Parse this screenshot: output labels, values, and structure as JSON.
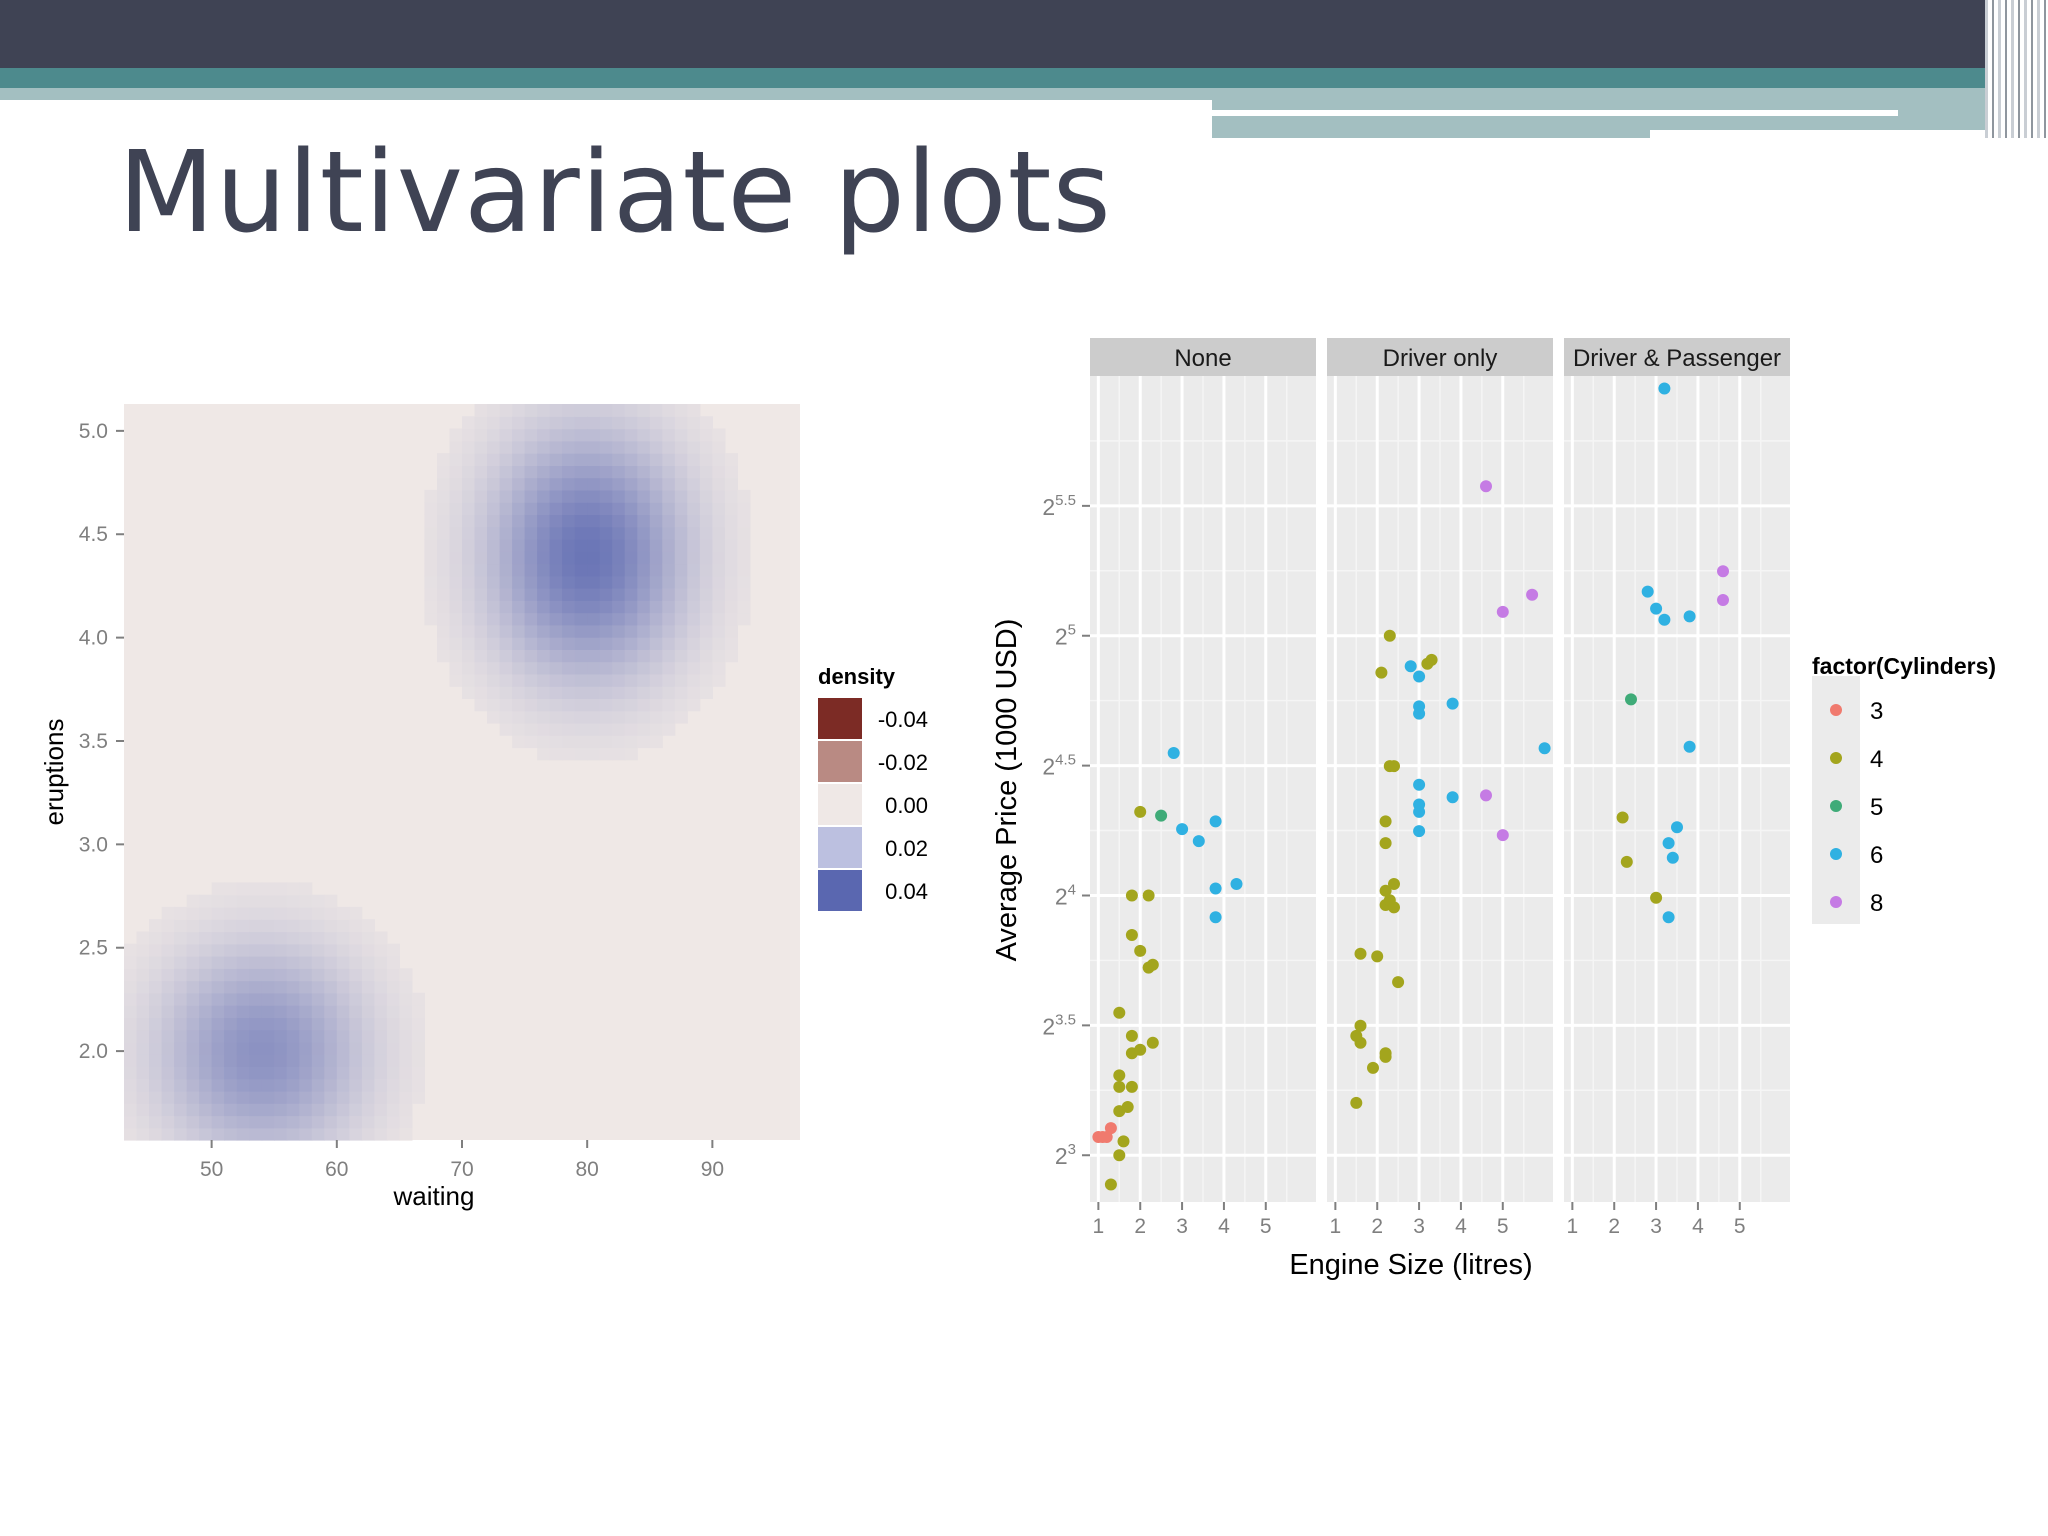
{
  "slide": {
    "title": "Multivariate plots"
  },
  "chart_data": [
    {
      "type": "heatmap",
      "xlabel": "waiting",
      "ylabel": "eruptions",
      "xlim": [
        43,
        97
      ],
      "ylim": [
        1.57,
        5.13
      ],
      "xticks": [
        50,
        60,
        70,
        80,
        90
      ],
      "yticks": [
        "2.0",
        "2.5",
        "3.0",
        "3.5",
        "4.0",
        "4.5",
        "5.0"
      ],
      "legend": {
        "title": "density",
        "placement": "right",
        "entries": [
          {
            "label": "-0.04",
            "color": "#7c2b25"
          },
          {
            "label": "-0.02",
            "color": "#b98a83"
          },
          {
            "label": "0.00",
            "color": "#efe8e6"
          },
          {
            "label": "0.02",
            "color": "#bcc0e0"
          },
          {
            "label": "0.04",
            "color": "#5a67b0"
          }
        ]
      },
      "density_peaks": [
        {
          "waiting": 80,
          "eruptions": 4.4,
          "density": 0.04
        },
        {
          "waiting": 54,
          "eruptions": 2.0,
          "density": 0.03
        }
      ]
    },
    {
      "type": "scatter",
      "xlabel": "Engine Size (litres)",
      "ylabel": "Average Price (1000 USD)",
      "y_scale": "log2",
      "yticks": [
        "2^3",
        "2^3.5",
        "2^4",
        "2^4.5",
        "2^5",
        "2^5.5"
      ],
      "xticks": [
        "1",
        "2",
        "3",
        "4",
        "5"
      ],
      "grid": true,
      "facets": [
        "None",
        "Driver only",
        "Driver & Passenger"
      ],
      "legend": {
        "title": "factor(Cylinders)",
        "placement": "right",
        "entries": [
          {
            "label": "3",
            "color": "#f07a6e"
          },
          {
            "label": "4",
            "color": "#a3a51d"
          },
          {
            "label": "5",
            "color": "#3fab78"
          },
          {
            "label": "6",
            "color": "#2fb1e2"
          },
          {
            "label": "8",
            "color": "#c57be4"
          }
        ]
      },
      "series": [
        {
          "facet": "None",
          "points": [
            {
              "x": 1.0,
              "y": 8.4,
              "cyl": "3"
            },
            {
              "x": 1.1,
              "y": 8.4,
              "cyl": "3"
            },
            {
              "x": 1.2,
              "y": 8.4,
              "cyl": "3"
            },
            {
              "x": 1.3,
              "y": 8.6,
              "cyl": "3"
            },
            {
              "x": 1.3,
              "y": 7.4,
              "cyl": "4"
            },
            {
              "x": 1.5,
              "y": 8.0,
              "cyl": "4"
            },
            {
              "x": 1.6,
              "y": 8.3,
              "cyl": "4"
            },
            {
              "x": 1.5,
              "y": 9.0,
              "cyl": "4"
            },
            {
              "x": 1.7,
              "y": 9.1,
              "cyl": "4"
            },
            {
              "x": 1.5,
              "y": 9.6,
              "cyl": "4"
            },
            {
              "x": 1.8,
              "y": 9.6,
              "cyl": "4"
            },
            {
              "x": 1.5,
              "y": 9.9,
              "cyl": "4"
            },
            {
              "x": 1.8,
              "y": 10.5,
              "cyl": "4"
            },
            {
              "x": 2.0,
              "y": 10.6,
              "cyl": "4"
            },
            {
              "x": 2.3,
              "y": 10.8,
              "cyl": "4"
            },
            {
              "x": 1.8,
              "y": 11.0,
              "cyl": "4"
            },
            {
              "x": 1.5,
              "y": 11.7,
              "cyl": "4"
            },
            {
              "x": 2.2,
              "y": 13.2,
              "cyl": "4"
            },
            {
              "x": 2.3,
              "y": 13.3,
              "cyl": "4"
            },
            {
              "x": 2.0,
              "y": 13.8,
              "cyl": "4"
            },
            {
              "x": 1.8,
              "y": 14.4,
              "cyl": "4"
            },
            {
              "x": 1.8,
              "y": 16.0,
              "cyl": "4"
            },
            {
              "x": 2.2,
              "y": 16.0,
              "cyl": "4"
            },
            {
              "x": 2.0,
              "y": 20.0,
              "cyl": "4"
            },
            {
              "x": 2.5,
              "y": 19.8,
              "cyl": "5"
            },
            {
              "x": 2.8,
              "y": 23.4,
              "cyl": "6"
            },
            {
              "x": 3.0,
              "y": 19.1,
              "cyl": "6"
            },
            {
              "x": 3.4,
              "y": 18.5,
              "cyl": "6"
            },
            {
              "x": 3.8,
              "y": 19.5,
              "cyl": "6"
            },
            {
              "x": 3.8,
              "y": 16.3,
              "cyl": "6"
            },
            {
              "x": 4.3,
              "y": 16.5,
              "cyl": "6"
            },
            {
              "x": 3.8,
              "y": 15.1,
              "cyl": "6"
            }
          ]
        },
        {
          "facet": "Driver only",
          "points": [
            {
              "x": 1.5,
              "y": 9.2,
              "cyl": "4"
            },
            {
              "x": 1.6,
              "y": 10.8,
              "cyl": "4"
            },
            {
              "x": 1.5,
              "y": 11.0,
              "cyl": "4"
            },
            {
              "x": 1.6,
              "y": 11.3,
              "cyl": "4"
            },
            {
              "x": 1.9,
              "y": 10.1,
              "cyl": "4"
            },
            {
              "x": 2.2,
              "y": 10.4,
              "cyl": "4"
            },
            {
              "x": 2.2,
              "y": 10.5,
              "cyl": "4"
            },
            {
              "x": 2.5,
              "y": 12.7,
              "cyl": "4"
            },
            {
              "x": 1.6,
              "y": 13.7,
              "cyl": "4"
            },
            {
              "x": 2.0,
              "y": 13.6,
              "cyl": "4"
            },
            {
              "x": 2.2,
              "y": 15.6,
              "cyl": "4"
            },
            {
              "x": 2.3,
              "y": 15.8,
              "cyl": "4"
            },
            {
              "x": 2.4,
              "y": 15.5,
              "cyl": "4"
            },
            {
              "x": 2.2,
              "y": 16.2,
              "cyl": "4"
            },
            {
              "x": 2.4,
              "y": 16.5,
              "cyl": "4"
            },
            {
              "x": 2.2,
              "y": 18.4,
              "cyl": "4"
            },
            {
              "x": 2.2,
              "y": 19.5,
              "cyl": "4"
            },
            {
              "x": 2.3,
              "y": 22.6,
              "cyl": "4"
            },
            {
              "x": 2.4,
              "y": 22.6,
              "cyl": "4"
            },
            {
              "x": 2.1,
              "y": 29.0,
              "cyl": "4"
            },
            {
              "x": 2.3,
              "y": 32.0,
              "cyl": "4"
            },
            {
              "x": 3.2,
              "y": 29.7,
              "cyl": "4"
            },
            {
              "x": 3.3,
              "y": 30.0,
              "cyl": "4"
            },
            {
              "x": 2.8,
              "y": 29.5,
              "cyl": "6"
            },
            {
              "x": 3.0,
              "y": 28.7,
              "cyl": "6"
            },
            {
              "x": 3.0,
              "y": 26.5,
              "cyl": "6"
            },
            {
              "x": 3.0,
              "y": 26.0,
              "cyl": "6"
            },
            {
              "x": 3.8,
              "y": 26.7,
              "cyl": "6"
            },
            {
              "x": 6.0,
              "y": 23.7,
              "cyl": "6"
            },
            {
              "x": 3.0,
              "y": 21.5,
              "cyl": "6"
            },
            {
              "x": 3.0,
              "y": 20.4,
              "cyl": "6"
            },
            {
              "x": 3.0,
              "y": 20.0,
              "cyl": "6"
            },
            {
              "x": 3.0,
              "y": 19.0,
              "cyl": "6"
            },
            {
              "x": 3.8,
              "y": 20.8,
              "cyl": "6"
            },
            {
              "x": 4.6,
              "y": 47.7,
              "cyl": "8"
            },
            {
              "x": 5.7,
              "y": 35.7,
              "cyl": "8"
            },
            {
              "x": 5.0,
              "y": 34.1,
              "cyl": "8"
            },
            {
              "x": 4.6,
              "y": 20.9,
              "cyl": "8"
            },
            {
              "x": 5.0,
              "y": 18.8,
              "cyl": "8"
            }
          ]
        },
        {
          "facet": "Driver & Passenger",
          "points": [
            {
              "x": 2.3,
              "y": 17.5,
              "cyl": "4"
            },
            {
              "x": 2.2,
              "y": 19.7,
              "cyl": "4"
            },
            {
              "x": 3.0,
              "y": 15.9,
              "cyl": "4"
            },
            {
              "x": 2.4,
              "y": 27.0,
              "cyl": "5"
            },
            {
              "x": 3.2,
              "y": 61.9,
              "cyl": "6"
            },
            {
              "x": 2.8,
              "y": 36.0,
              "cyl": "6"
            },
            {
              "x": 3.0,
              "y": 34.4,
              "cyl": "6"
            },
            {
              "x": 3.2,
              "y": 33.4,
              "cyl": "6"
            },
            {
              "x": 3.8,
              "y": 33.7,
              "cyl": "6"
            },
            {
              "x": 3.8,
              "y": 23.8,
              "cyl": "6"
            },
            {
              "x": 3.5,
              "y": 19.2,
              "cyl": "6"
            },
            {
              "x": 3.3,
              "y": 18.4,
              "cyl": "6"
            },
            {
              "x": 3.4,
              "y": 17.7,
              "cyl": "6"
            },
            {
              "x": 3.3,
              "y": 15.1,
              "cyl": "6"
            },
            {
              "x": 4.6,
              "y": 38.0,
              "cyl": "8"
            },
            {
              "x": 4.6,
              "y": 35.2,
              "cyl": "8"
            }
          ]
        }
      ]
    }
  ]
}
